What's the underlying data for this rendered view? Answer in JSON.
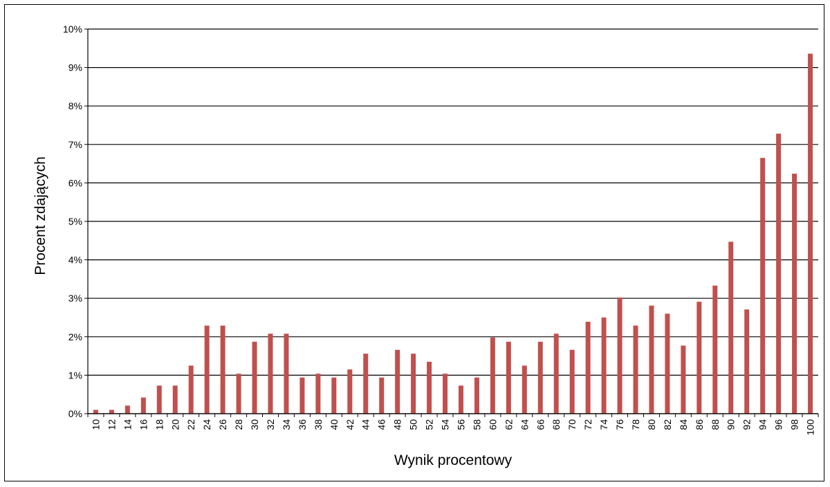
{
  "chart_data": {
    "type": "bar",
    "title": "",
    "xlabel": "Wynik procentowy",
    "ylabel": "Procent zdających",
    "categories": [
      "10",
      "12",
      "14",
      "16",
      "18",
      "20",
      "22",
      "24",
      "26",
      "28",
      "30",
      "32",
      "34",
      "36",
      "38",
      "40",
      "42",
      "44",
      "46",
      "48",
      "50",
      "52",
      "54",
      "56",
      "58",
      "60",
      "62",
      "64",
      "66",
      "68",
      "70",
      "72",
      "74",
      "76",
      "78",
      "80",
      "82",
      "84",
      "86",
      "88",
      "90",
      "92",
      "94",
      "96",
      "98",
      "100"
    ],
    "values": [
      0.1,
      0.1,
      0.21,
      0.42,
      0.73,
      0.73,
      1.25,
      2.29,
      2.29,
      1.04,
      1.87,
      2.08,
      2.08,
      0.94,
      1.04,
      0.94,
      1.15,
      1.56,
      0.94,
      1.66,
      1.56,
      1.35,
      1.04,
      0.73,
      0.94,
      1.98,
      1.87,
      1.25,
      1.87,
      2.08,
      1.66,
      2.39,
      2.5,
      3.02,
      2.29,
      2.81,
      2.6,
      1.77,
      2.91,
      3.33,
      4.47,
      2.71,
      6.65,
      7.28,
      6.24,
      9.36
    ],
    "ylim": [
      0,
      10
    ],
    "yticks": [
      0,
      1,
      2,
      3,
      4,
      5,
      6,
      7,
      8,
      9,
      10
    ],
    "ytick_labels": [
      "0%",
      "1%",
      "2%",
      "3%",
      "4%",
      "5%",
      "6%",
      "7%",
      "8%",
      "9%",
      "10%"
    ],
    "grid": true,
    "legend": "none",
    "bar_color": "#C0504D",
    "gridline_color": "#000000"
  }
}
